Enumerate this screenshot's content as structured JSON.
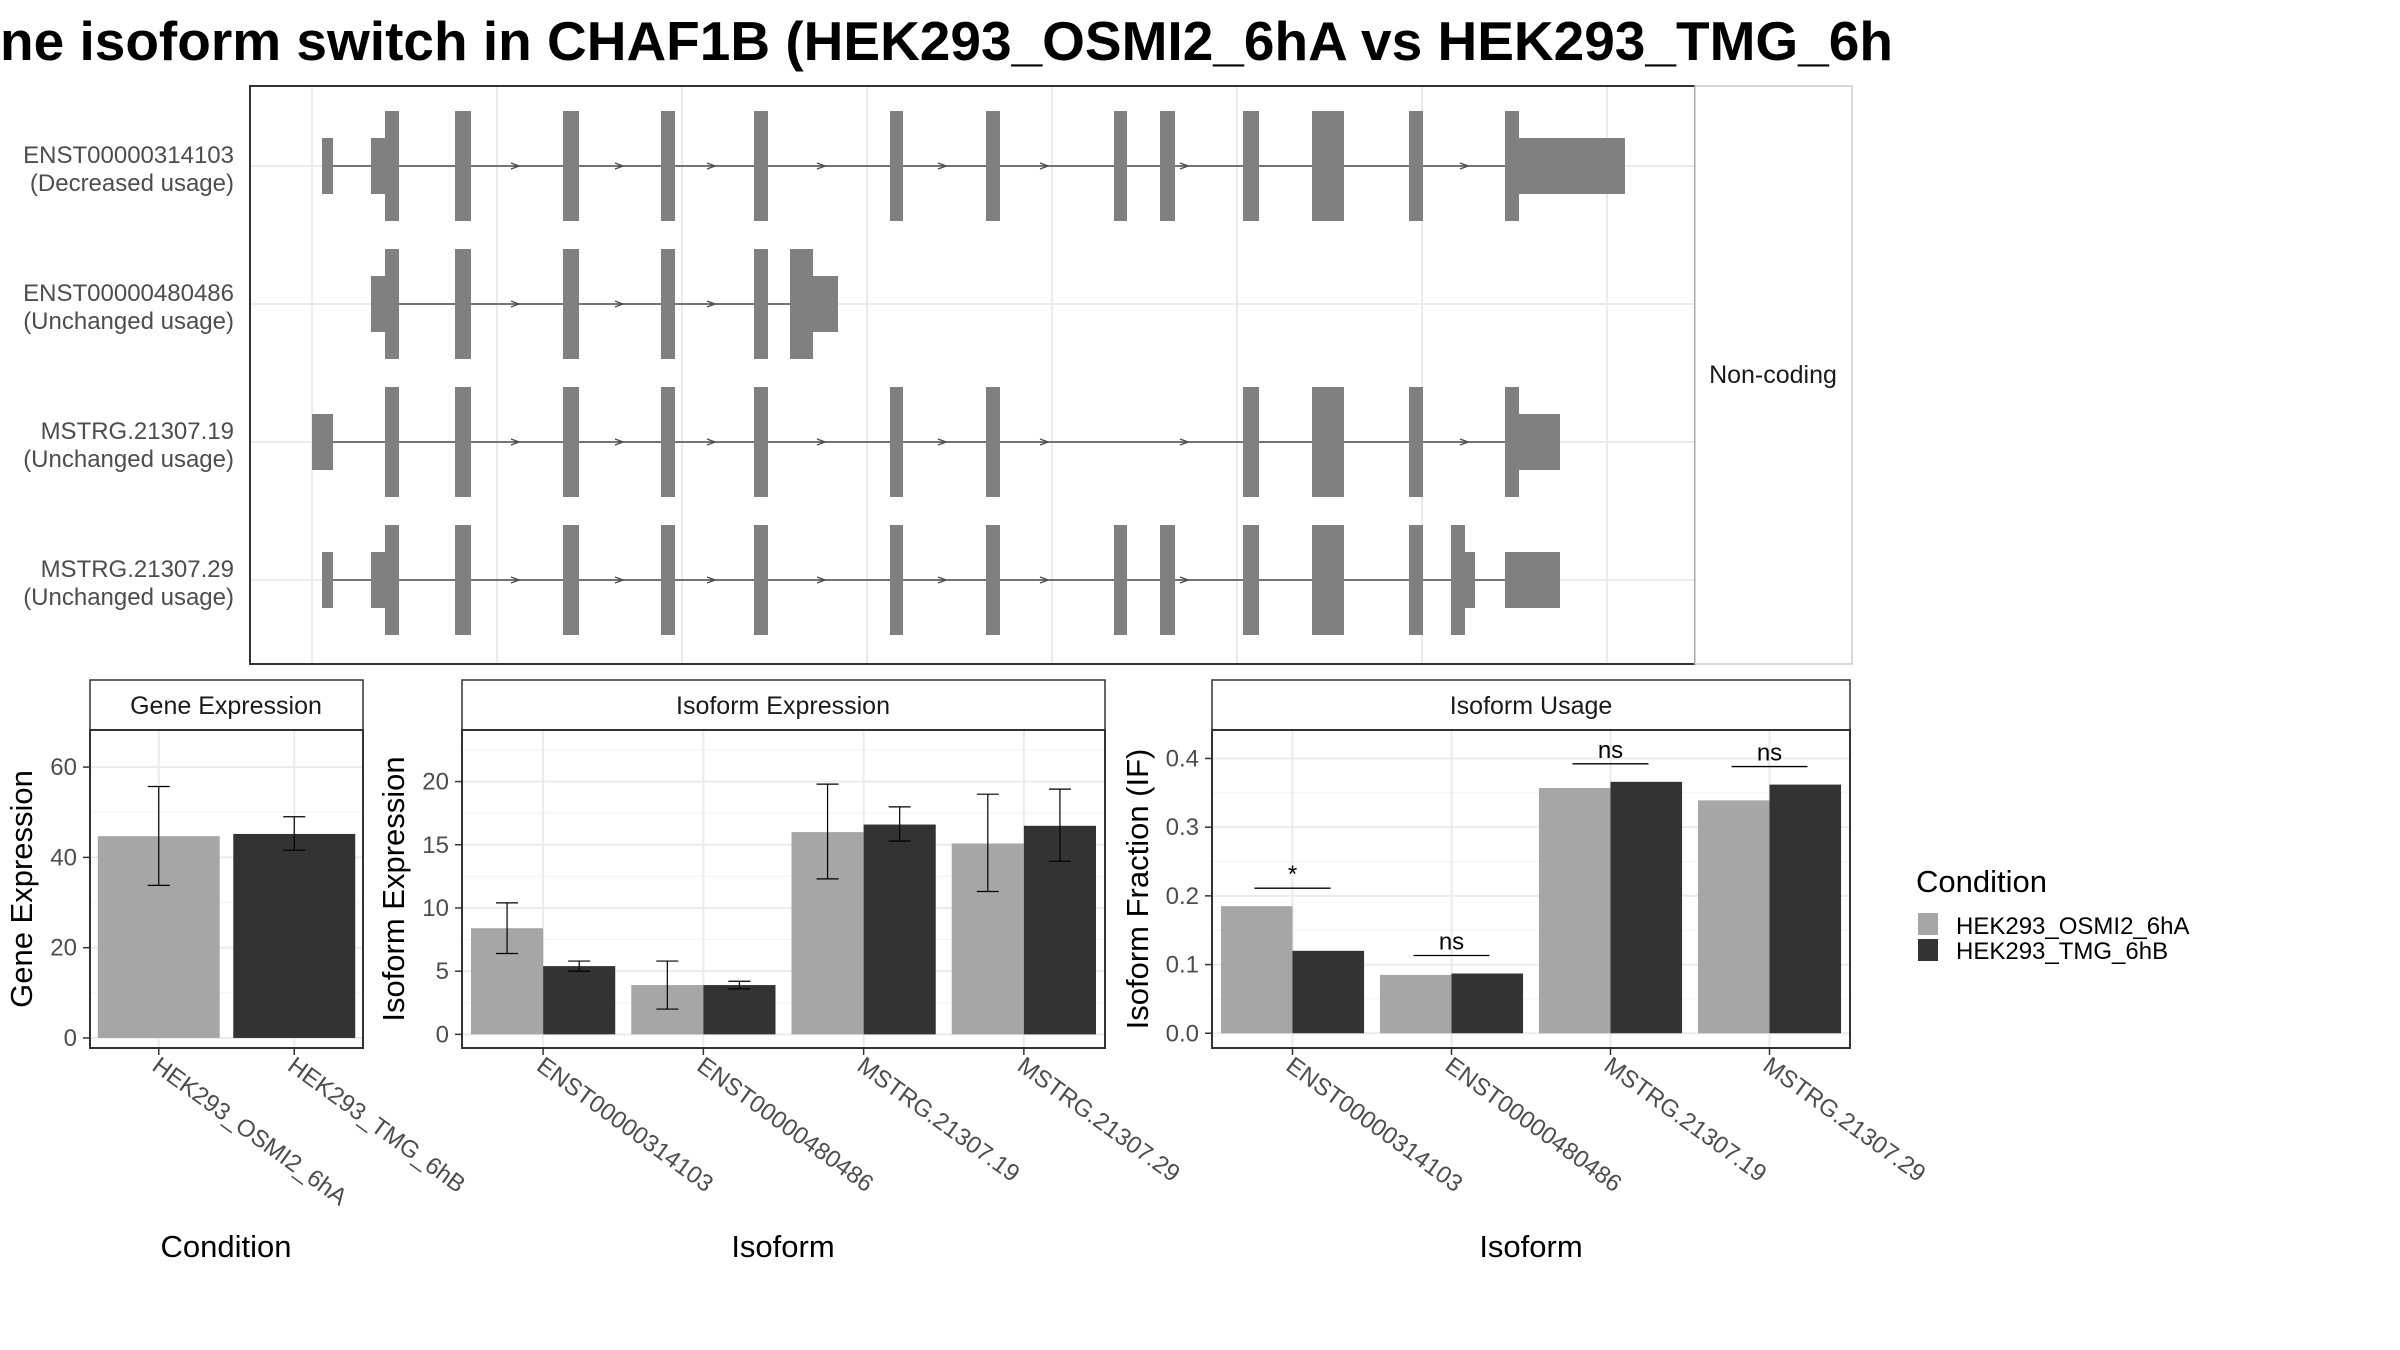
{
  "title": "ne isoform switch in CHAF1B (HEK293_OSMI2_6hA vs HEK293_TMG_6h",
  "colors": {
    "HEK293_OSMI2_6hA": "#a6a6a6",
    "HEK293_TMG_6hB": "#333333",
    "exon": "#808080"
  },
  "chart_data": [
    {
      "type": "diagram",
      "panel": "isoform-structures",
      "facet_label": "Non-coding",
      "isoforms": [
        {
          "id": "ENST00000314103",
          "usage": "(Decreased usage)"
        },
        {
          "id": "ENST00000480486",
          "usage": "(Unchanged usage)"
        },
        {
          "id": "MSTRG.21307.19",
          "usage": "(Unchanged usage)"
        },
        {
          "id": "MSTRG.21307.29",
          "usage": "(Unchanged usage)"
        }
      ]
    },
    {
      "type": "bar",
      "title": "Gene Expression",
      "xlabel": "Condition",
      "ylabel": "Gene Expression",
      "ylim": [
        -2,
        68
      ],
      "yticks": [
        0,
        20,
        40,
        60
      ],
      "categories": [
        "HEK293_OSMI2_6hA",
        "HEK293_TMG_6hB"
      ],
      "values": [
        44.7,
        45.2
      ],
      "error_low": [
        33.8,
        41.6
      ],
      "error_high": [
        55.7,
        49.0
      ]
    },
    {
      "type": "bar",
      "title": "Isoform Expression",
      "xlabel": "Isoform",
      "ylabel": "Isoform Expression",
      "ylim": [
        -1,
        24
      ],
      "yticks": [
        0,
        5,
        10,
        15,
        20
      ],
      "categories": [
        "ENST00000314103",
        "ENST00000480486",
        "MSTRG.21307.19",
        "MSTRG.21307.29"
      ],
      "series": [
        {
          "name": "HEK293_OSMI2_6hA",
          "values": [
            8.4,
            3.9,
            16.0,
            15.1
          ],
          "error_low": [
            6.4,
            2.0,
            12.3,
            11.3
          ],
          "error_high": [
            10.4,
            5.8,
            19.8,
            19.0
          ]
        },
        {
          "name": "HEK293_TMG_6hB",
          "values": [
            5.4,
            3.9,
            16.6,
            16.5
          ],
          "error_low": [
            5.0,
            3.6,
            15.3,
            13.7
          ],
          "error_high": [
            5.8,
            4.2,
            18.0,
            19.4
          ]
        }
      ]
    },
    {
      "type": "bar",
      "title": "Isoform Usage",
      "xlabel": "Isoform",
      "ylabel": "Isoform Fraction (IF)",
      "ylim": [
        -0.02,
        0.44
      ],
      "yticks": [
        "0.0",
        "0.1",
        "0.2",
        "0.3",
        "0.4"
      ],
      "categories": [
        "ENST00000314103",
        "ENST00000480486",
        "MSTRG.21307.19",
        "MSTRG.21307.29"
      ],
      "series": [
        {
          "name": "HEK293_OSMI2_6hA",
          "values": [
            0.185,
            0.085,
            0.357,
            0.339
          ]
        },
        {
          "name": "HEK293_TMG_6hB",
          "values": [
            0.12,
            0.087,
            0.366,
            0.362
          ]
        }
      ],
      "significance": [
        "*",
        "ns",
        "ns",
        "ns"
      ]
    }
  ],
  "legend": {
    "title": "Condition",
    "entries": [
      "HEK293_OSMI2_6hA",
      "HEK293_TMG_6hB"
    ]
  }
}
